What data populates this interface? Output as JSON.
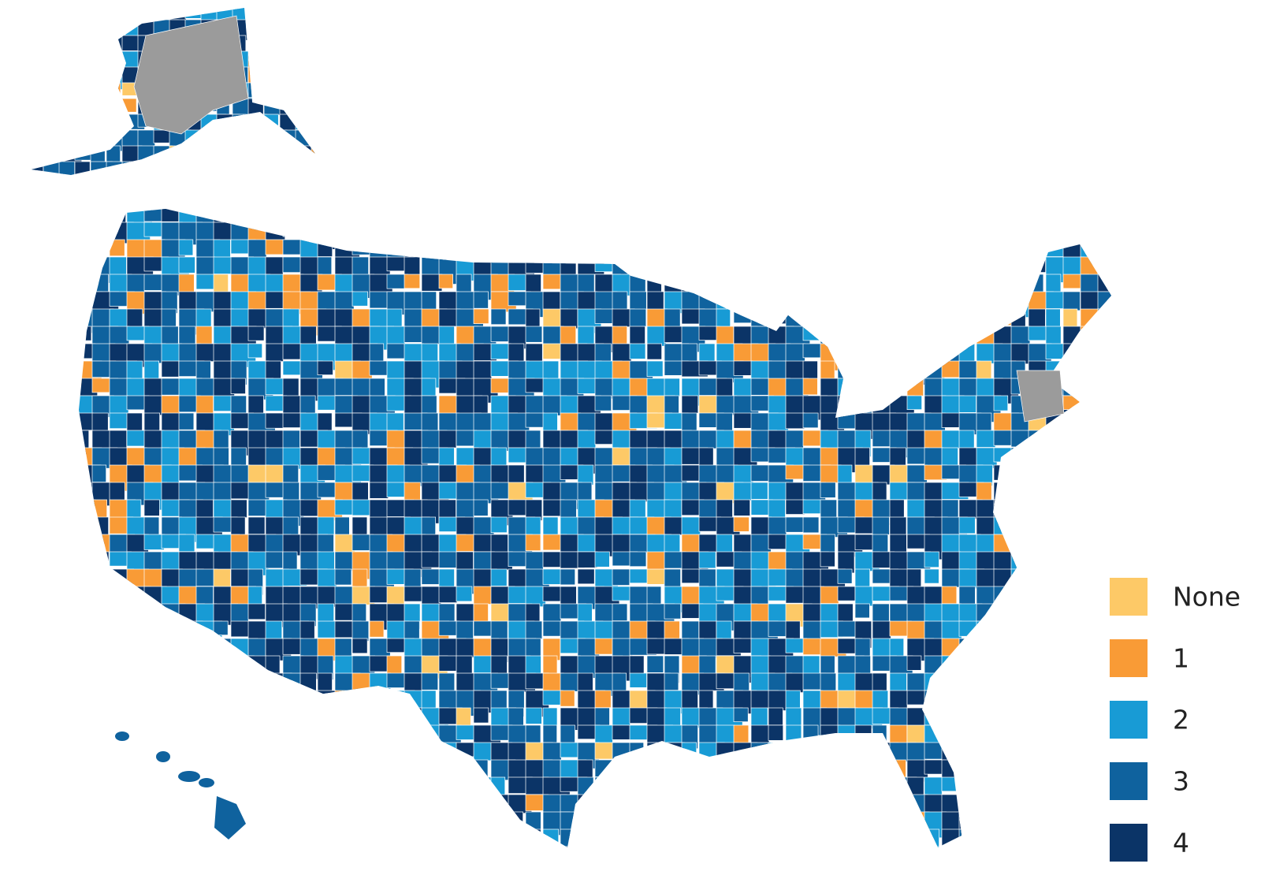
{
  "legend": {
    "items": [
      {
        "label": "None",
        "color": "#fdc967"
      },
      {
        "label": "1",
        "color": "#f99b36"
      },
      {
        "label": "2",
        "color": "#189bd5"
      },
      {
        "label": "3",
        "color": "#0f629e"
      },
      {
        "label": "4",
        "color": "#0b3467"
      }
    ]
  }
}
